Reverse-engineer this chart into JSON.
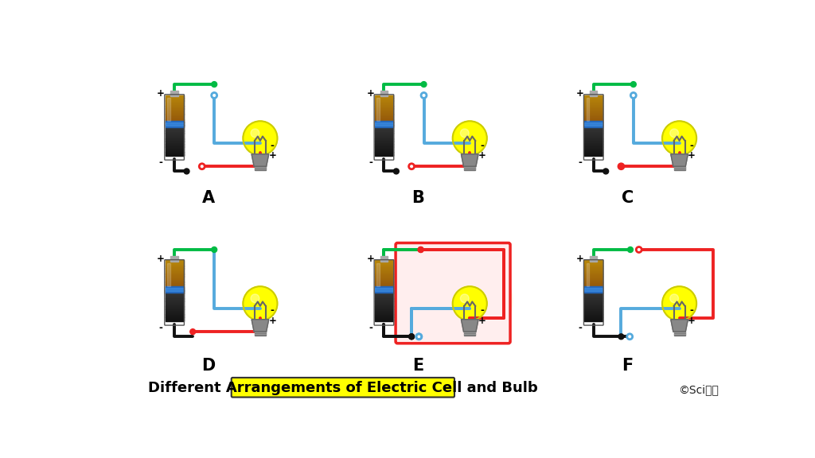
{
  "title": "Different Arrangements of Electric Cell and Bulb",
  "title_bg": "#FFFF00",
  "title_color": "#000000",
  "title_fontsize": 13,
  "copyright": "©Sciखक",
  "bg_color": "#FFFFFF",
  "labels": [
    "A",
    "B",
    "C",
    "D",
    "E",
    "F"
  ],
  "label_fontsize": 15,
  "wire": {
    "green": "#00BB44",
    "blue": "#55AADD",
    "red": "#EE2222",
    "black": "#111111"
  },
  "lw": 2.8,
  "dot_r": 4.5,
  "panels": [
    {
      "col": 0,
      "row": 0,
      "label": "A"
    },
    {
      "col": 1,
      "row": 0,
      "label": "B"
    },
    {
      "col": 2,
      "row": 0,
      "label": "C"
    },
    {
      "col": 0,
      "row": 1,
      "label": "D"
    },
    {
      "col": 1,
      "row": 1,
      "label": "E"
    },
    {
      "col": 2,
      "row": 1,
      "label": "F"
    }
  ]
}
